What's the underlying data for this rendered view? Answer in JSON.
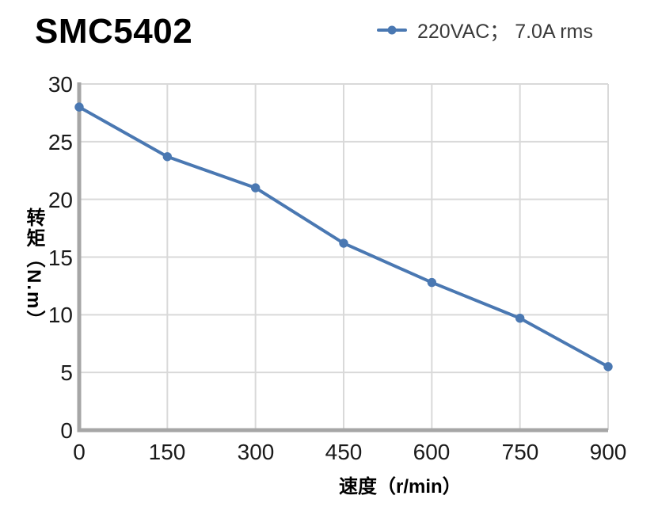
{
  "title": "SMC5402",
  "legend": {
    "label": "220VAC； 7.0A rms",
    "marker": "line-with-circle"
  },
  "chart_data": {
    "type": "line",
    "title": "SMC5402",
    "x": [
      0,
      150,
      300,
      450,
      600,
      750,
      900
    ],
    "series": [
      {
        "name": "220VAC； 7.0A rms",
        "values": [
          28.0,
          23.7,
          21.0,
          16.2,
          12.8,
          9.7,
          5.5
        ],
        "color": "#4a78b2",
        "marker": "circle"
      }
    ],
    "xlabel": "速度（r/min）",
    "ylabel": "转矩（N.m）",
    "xlim": [
      0,
      900
    ],
    "ylim": [
      0,
      30
    ],
    "xticks": [
      0,
      150,
      300,
      450,
      600,
      750,
      900
    ],
    "yticks": [
      0,
      5,
      10,
      15,
      20,
      25,
      30
    ],
    "grid": true,
    "legend_position": "top-right"
  },
  "colors": {
    "line": "#4a78b2",
    "grid": "#d9d9d9",
    "axis": "#a6a6a6",
    "tick_text": "#1a1a1a",
    "legend_text": "#3a3a3a",
    "title_text": "#000000"
  }
}
